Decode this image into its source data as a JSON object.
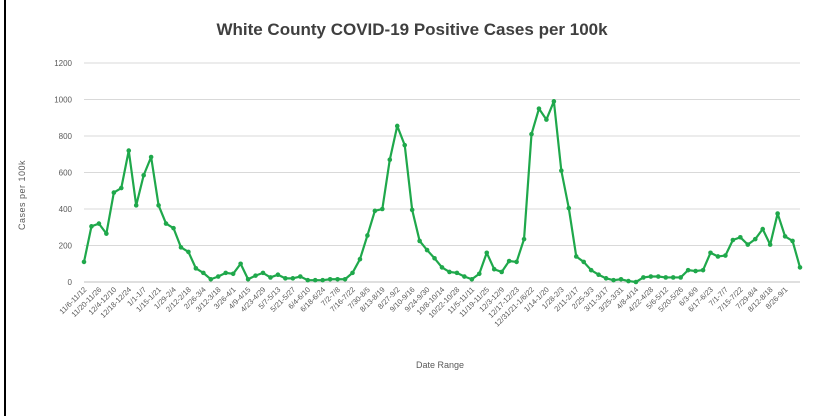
{
  "chart_data": {
    "type": "line",
    "title": "White County COVID-19 Positive Cases per 100k",
    "xlabel": "Date Range",
    "ylabel": "Cases per 100k",
    "ylim": [
      0,
      1200
    ],
    "yticks": [
      0,
      200,
      400,
      600,
      800,
      1000,
      1200
    ],
    "grid": true,
    "legend": "none",
    "line_color": "#1fa84b",
    "grid_color": "#d9d9d9",
    "x_tick_labels": [
      "11/6-11/12",
      "11/20-11/26",
      "12/4-12/10",
      "12/18-12/24",
      "1/1-1/7",
      "1/15-1/21",
      "1/29-2/4",
      "2/12-2/18",
      "2/26-3/4",
      "3/12-3/18",
      "3/26-4/1",
      "4/9-4/15",
      "4/23-4/29",
      "5/7-5/13",
      "5/21-5/27",
      "6/4-6/10",
      "6/18-6/24",
      "7/2-7/8",
      "7/16-7/22",
      "7/30-8/5",
      "8/13-8/19",
      "8/27-9/2",
      "9/10-9/16",
      "9/24-9/30",
      "10/8-10/14",
      "10/22-10/28",
      "11/5-11/11",
      "11/19-11/25",
      "12/3-12/9",
      "12/17-12/23",
      "12/31/21-1/6/22",
      "1/14-1/20",
      "1/28-2/3",
      "2/11-2/17",
      "2/25-3/3",
      "3/11-3/17",
      "3/25-3/31",
      "4/8-4/14",
      "4/22-4/28",
      "5/6-5/12",
      "5/20-5/26",
      "6/3-6/9",
      "6/17-6/23",
      "7/1-7/7",
      "7/15-7/22",
      "7/29-8/4",
      "8/12-8/18",
      "8/26-9/1"
    ],
    "series": [
      {
        "values": [
          110,
          305,
          320,
          265,
          490,
          515,
          720,
          420,
          585,
          685,
          420,
          320,
          295,
          190,
          165,
          75,
          50,
          15,
          30,
          50,
          45,
          100,
          15,
          35,
          50,
          25,
          40,
          20,
          20,
          30,
          10,
          10,
          10,
          15,
          15,
          15,
          50,
          125,
          255,
          390,
          400,
          670,
          855,
          750,
          395,
          225,
          175,
          130,
          80,
          55,
          50,
          30,
          15,
          45,
          160,
          70,
          55,
          115,
          110,
          235,
          810,
          950,
          890,
          990,
          610,
          405,
          140,
          110,
          65,
          40,
          20,
          10,
          15,
          5,
          0,
          25,
          30,
          30,
          25,
          25,
          25,
          65,
          60,
          65,
          160,
          140,
          145,
          230,
          245,
          205,
          235,
          290,
          205,
          375,
          250,
          225,
          80
        ]
      }
    ]
  }
}
